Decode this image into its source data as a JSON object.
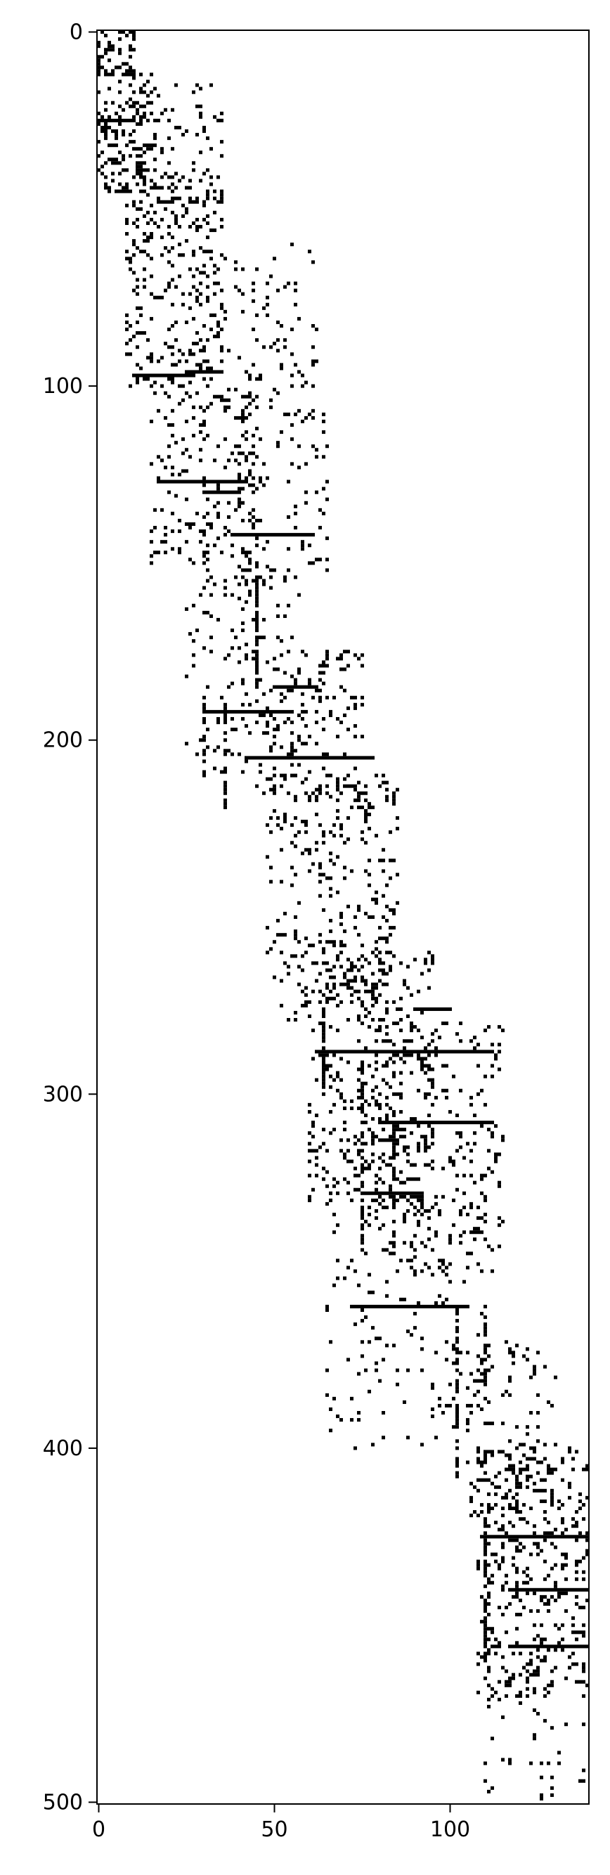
{
  "chart_data": {
    "type": "heatmap",
    "subtype": "sparsity-pattern",
    "title": "",
    "xlabel": "",
    "ylabel": "",
    "xlim": [
      -0.5,
      139.5
    ],
    "ylim": [
      500.5,
      -0.5
    ],
    "x_ticks": [
      0,
      50,
      100
    ],
    "y_ticks": [
      0,
      100,
      200,
      300,
      400,
      500
    ],
    "y_axis_inverted": true,
    "grid": false,
    "legend": "none",
    "colors": {
      "nonzero": "#000000",
      "zero": "#ffffff"
    },
    "seed": 20240613,
    "nonzero_bands": [
      {
        "rows": [
          0,
          12
        ],
        "cols": [
          0,
          10
        ],
        "density": 0.35
      },
      {
        "rows": [
          10,
          45
        ],
        "cols": [
          0,
          16
        ],
        "density": 0.22
      },
      {
        "rows": [
          15,
          55
        ],
        "cols": [
          10,
          35
        ],
        "density": 0.1
      },
      {
        "rows": [
          40,
          100
        ],
        "cols": [
          8,
          35
        ],
        "density": 0.14
      },
      {
        "rows": [
          60,
          110
        ],
        "cols": [
          30,
          62
        ],
        "density": 0.06
      },
      {
        "rows": [
          100,
          150
        ],
        "cols": [
          15,
          45
        ],
        "density": 0.12
      },
      {
        "rows": [
          105,
          160
        ],
        "cols": [
          40,
          65
        ],
        "density": 0.07
      },
      {
        "rows": [
          150,
          210
        ],
        "cols": [
          25,
          55
        ],
        "density": 0.07
      },
      {
        "rows": [
          175,
          215
        ],
        "cols": [
          45,
          75
        ],
        "density": 0.1
      },
      {
        "rows": [
          210,
          280
        ],
        "cols": [
          48,
          85
        ],
        "density": 0.1
      },
      {
        "rows": [
          260,
          330
        ],
        "cols": [
          60,
          95
        ],
        "density": 0.13
      },
      {
        "rows": [
          280,
          350
        ],
        "cols": [
          75,
          115
        ],
        "density": 0.1
      },
      {
        "rows": [
          330,
          400
        ],
        "cols": [
          65,
          112
        ],
        "density": 0.05
      },
      {
        "rows": [
          370,
          420
        ],
        "cols": [
          105,
          130
        ],
        "density": 0.07
      },
      {
        "rows": [
          400,
          470
        ],
        "cols": [
          108,
          140
        ],
        "density": 0.18
      },
      {
        "rows": [
          465,
          501
        ],
        "cols": [
          110,
          140
        ],
        "density": 0.05
      }
    ],
    "horizontal_runs": [
      {
        "row": 25,
        "cols": [
          1,
          10
        ]
      },
      {
        "row": 97,
        "cols": [
          10,
          27
        ]
      },
      {
        "row": 96,
        "cols": [
          25,
          34
        ]
      },
      {
        "row": 127,
        "cols": [
          18,
          42
        ]
      },
      {
        "row": 130,
        "cols": [
          30,
          40
        ]
      },
      {
        "row": 142,
        "cols": [
          38,
          60
        ]
      },
      {
        "row": 185,
        "cols": [
          50,
          62
        ]
      },
      {
        "row": 192,
        "cols": [
          30,
          55
        ]
      },
      {
        "row": 205,
        "cols": [
          42,
          78
        ]
      },
      {
        "row": 276,
        "cols": [
          90,
          100
        ]
      },
      {
        "row": 288,
        "cols": [
          62,
          112
        ]
      },
      {
        "row": 308,
        "cols": [
          80,
          112
        ]
      },
      {
        "row": 328,
        "cols": [
          75,
          92
        ]
      },
      {
        "row": 360,
        "cols": [
          72,
          105
        ]
      },
      {
        "row": 425,
        "cols": [
          110,
          140
        ]
      },
      {
        "row": 440,
        "cols": [
          118,
          140
        ]
      },
      {
        "row": 456,
        "cols": [
          117,
          140
        ]
      }
    ],
    "vertical_runs": [
      {
        "col": 30,
        "rows": [
          188,
          210
        ]
      },
      {
        "col": 36,
        "rows": [
          190,
          220
        ]
      },
      {
        "col": 45,
        "rows": [
          145,
          185
        ]
      },
      {
        "col": 63,
        "rows": [
          180,
          196
        ]
      },
      {
        "col": 64,
        "rows": [
          275,
          300
        ]
      },
      {
        "col": 75,
        "rows": [
          290,
          340
        ]
      },
      {
        "col": 84,
        "rows": [
          300,
          345
        ]
      },
      {
        "col": 102,
        "rows": [
          360,
          410
        ]
      },
      {
        "col": 110,
        "rows": [
          360,
          390
        ]
      },
      {
        "col": 110,
        "rows": [
          420,
          460
        ]
      }
    ]
  }
}
